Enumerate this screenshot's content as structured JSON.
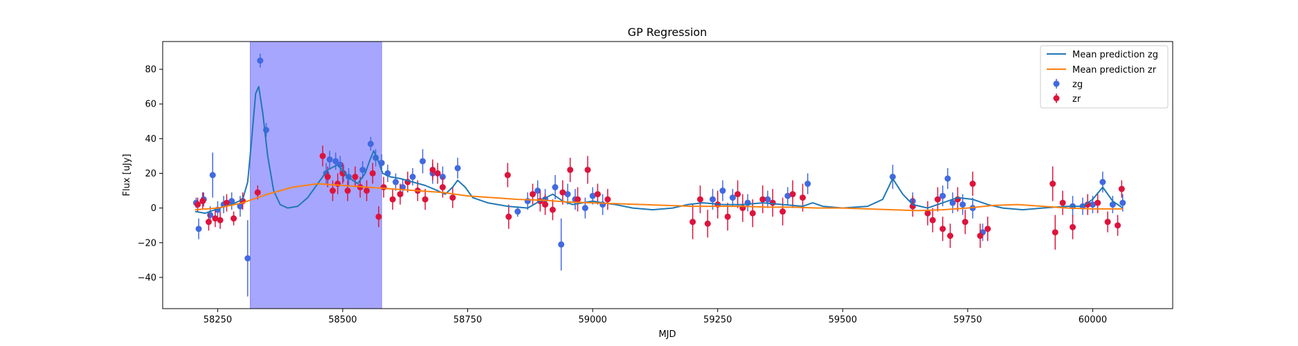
{
  "chart_data": {
    "type": "scatter",
    "title": "GP Regression",
    "xlabel": "MJD",
    "ylabel": "Flux [uJy]",
    "xlim": [
      58140,
      60160
    ],
    "ylim": [
      -58,
      96
    ],
    "xticks": [
      58250,
      58500,
      58750,
      59000,
      59250,
      59500,
      59750,
      60000
    ],
    "yticks": [
      -40,
      -20,
      0,
      20,
      40,
      60,
      80
    ],
    "grid": false,
    "legend_position": "top-right",
    "shaded_region": {
      "x_start": 58315,
      "x_end": 58578,
      "color": "#a6a6ff"
    },
    "series": [
      {
        "name": "Mean prediction zg",
        "kind": "line",
        "color": "#1f77b4",
        "x": [
          58205,
          58225,
          58245,
          58265,
          58285,
          58300,
          58310,
          58318,
          58326,
          58332,
          58340,
          58350,
          58362,
          58375,
          58390,
          58410,
          58430,
          58450,
          58470,
          58490,
          58510,
          58530,
          58545,
          58555,
          58562,
          58570,
          58580,
          58595,
          58615,
          58640,
          58665,
          58690,
          58705,
          58720,
          58730,
          58745,
          58760,
          58790,
          58830,
          58870,
          58900,
          58920,
          58940,
          58960,
          58980,
          59000,
          59020,
          59045,
          59080,
          59120,
          59160,
          59190,
          59220,
          59260,
          59300,
          59340,
          59380,
          59420,
          59440,
          59460,
          59500,
          59550,
          59580,
          59600,
          59620,
          59640,
          59670,
          59700,
          59730,
          59760,
          59790,
          59820,
          59860,
          59900,
          59950,
          59980,
          60000,
          60020,
          60040,
          60060
        ],
        "y": [
          -2,
          -3,
          -1,
          1,
          3,
          5,
          15,
          40,
          66,
          70,
          55,
          30,
          10,
          2,
          0,
          1,
          6,
          14,
          22,
          25,
          18,
          14,
          20,
          28,
          33,
          28,
          20,
          18,
          17,
          15,
          13,
          10,
          8,
          12,
          16,
          12,
          6,
          3,
          1,
          0,
          5,
          8,
          4,
          2,
          3,
          4,
          3,
          2,
          0,
          -1,
          0,
          2,
          3,
          2,
          2,
          3,
          2,
          1,
          3,
          1,
          0,
          1,
          5,
          17,
          8,
          2,
          0,
          3,
          6,
          5,
          2,
          0,
          -1,
          0,
          1,
          1,
          5,
          12,
          4,
          0
        ]
      },
      {
        "name": "Mean prediction zr",
        "kind": "line",
        "color": "#ff7f0e",
        "x": [
          58205,
          58250,
          58300,
          58350,
          58400,
          58450,
          58500,
          58550,
          58600,
          58650,
          58700,
          58750,
          58800,
          58850,
          58900,
          58950,
          59000,
          59050,
          59100,
          59150,
          59200,
          59250,
          59300,
          59350,
          59400,
          59450,
          59500,
          59550,
          59600,
          59650,
          59700,
          59750,
          59800,
          59850,
          59900,
          59950,
          60000,
          60060
        ],
        "y": [
          -1,
          0,
          3,
          8,
          12,
          14,
          13,
          12,
          11,
          10,
          9,
          7,
          6,
          5,
          4.5,
          3.5,
          3,
          2.5,
          2,
          1.5,
          1,
          1,
          1,
          0.5,
          0.5,
          0,
          0,
          -0.5,
          -1,
          -1.5,
          -1,
          0,
          1.5,
          2,
          1,
          0,
          -0.5,
          -0.5
        ]
      },
      {
        "name": "zg",
        "kind": "errorbar",
        "color": "#4169e1",
        "x": [
          58207,
          58212,
          58222,
          58235,
          58240,
          58250,
          58262,
          58278,
          58295,
          58310,
          58335,
          58347,
          58467,
          58474,
          58486,
          58495,
          58502,
          58512,
          58540,
          58556,
          58566,
          58578,
          58590,
          58606,
          58620,
          58640,
          58660,
          58680,
          58700,
          58730,
          58850,
          58870,
          58890,
          58905,
          58925,
          58937,
          58950,
          58965,
          58985,
          59000,
          59020,
          59240,
          59260,
          59280,
          59310,
          59350,
          59390,
          59430,
          59600,
          59640,
          59700,
          59710,
          59720,
          59740,
          59760,
          59780,
          59960,
          59980,
          60000,
          60020,
          60040,
          60060
        ],
        "y": [
          3,
          -12,
          5,
          -4,
          19,
          -1,
          2,
          4,
          1,
          -29,
          85,
          45,
          20,
          28,
          27,
          25,
          20,
          18,
          22,
          37,
          29,
          26,
          20,
          15,
          12,
          18,
          27,
          20,
          18,
          23,
          -2,
          4,
          10,
          5,
          12,
          -21,
          8,
          5,
          0,
          7,
          2,
          5,
          10,
          6,
          3,
          5,
          7,
          14,
          18,
          4,
          7,
          17,
          3,
          2,
          0,
          -14,
          1,
          1,
          2,
          15,
          2,
          3
        ],
        "yerr": [
          3,
          6,
          4,
          5,
          13,
          5,
          5,
          5,
          6,
          22,
          4,
          4,
          6,
          5,
          5,
          5,
          5,
          5,
          5,
          4,
          5,
          5,
          5,
          5,
          5,
          5,
          7,
          6,
          6,
          6,
          3,
          5,
          6,
          6,
          7,
          15,
          6,
          6,
          6,
          5,
          6,
          6,
          6,
          5,
          5,
          5,
          5,
          6,
          7,
          5,
          6,
          6,
          6,
          6,
          6,
          5,
          6,
          5,
          5,
          6,
          5,
          5
        ]
      },
      {
        "name": "zr",
        "kind": "errorbar",
        "color": "#dc143c",
        "x": [
          58210,
          58220,
          58232,
          58245,
          58255,
          58268,
          58282,
          58300,
          58330,
          58460,
          58470,
          58480,
          58490,
          58500,
          58510,
          58525,
          58535,
          58548,
          58560,
          58572,
          58582,
          58600,
          58615,
          58630,
          58650,
          58665,
          58680,
          58690,
          58700,
          58720,
          58830,
          58832,
          58880,
          58895,
          58905,
          58920,
          58940,
          58955,
          58970,
          58990,
          59010,
          59030,
          59200,
          59215,
          59230,
          59250,
          59270,
          59290,
          59300,
          59320,
          59340,
          59360,
          59380,
          59400,
          59420,
          59640,
          59670,
          59680,
          59690,
          59700,
          59715,
          59730,
          59745,
          59760,
          59775,
          59790,
          59920,
          59925,
          59940,
          59960,
          59990,
          60010,
          60030,
          60050,
          60058
        ],
        "y": [
          2,
          4,
          -8,
          -6,
          -7,
          3,
          -6,
          4,
          9,
          30,
          18,
          10,
          14,
          20,
          10,
          18,
          12,
          10,
          20,
          -5,
          12,
          5,
          8,
          15,
          10,
          5,
          22,
          20,
          12,
          6,
          19,
          -5,
          8,
          4,
          2,
          -1,
          9,
          22,
          5,
          22,
          8,
          5,
          -8,
          5,
          -9,
          2,
          -5,
          8,
          0,
          -3,
          5,
          3,
          -2,
          8,
          6,
          1,
          -3,
          -7,
          5,
          -12,
          -16,
          5,
          -8,
          14,
          -16,
          -12,
          14,
          -14,
          3,
          -11,
          2,
          3,
          -8,
          -10,
          11
        ],
        "yerr": [
          4,
          5,
          5,
          5,
          5,
          5,
          4,
          5,
          4,
          6,
          6,
          6,
          6,
          6,
          6,
          6,
          6,
          6,
          6,
          6,
          6,
          6,
          6,
          6,
          6,
          6,
          6,
          6,
          6,
          6,
          7,
          7,
          6,
          6,
          6,
          6,
          7,
          7,
          7,
          8,
          6,
          6,
          10,
          8,
          8,
          8,
          8,
          8,
          8,
          8,
          8,
          8,
          8,
          8,
          8,
          6,
          7,
          7,
          7,
          7,
          7,
          7,
          7,
          7,
          7,
          7,
          10,
          10,
          7,
          7,
          6,
          6,
          6,
          6,
          5
        ]
      }
    ]
  }
}
